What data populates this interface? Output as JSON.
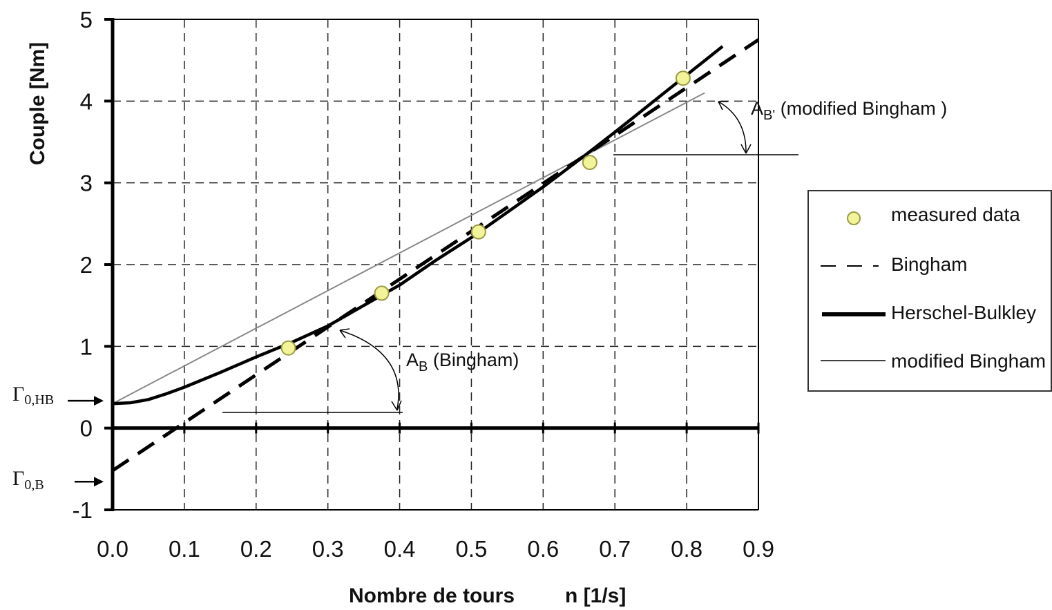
{
  "chart_data": {
    "type": "line",
    "title": "",
    "xlabel": "Nombre de tours",
    "xunit": "n [1/s]",
    "ylabel": "Couple",
    "yunit": "[Nm]",
    "xlim": [
      0.0,
      0.9
    ],
    "ylim": [
      -1,
      5
    ],
    "grid": true,
    "x_ticks": [
      "0.0",
      "0.1",
      "0.2",
      "0.3",
      "0.4",
      "0.5",
      "0.6",
      "0.7",
      "0.8",
      "0.9"
    ],
    "y_ticks": [
      "5",
      "4",
      "3",
      "2",
      "1",
      "0",
      "-1"
    ],
    "legend_position": "right",
    "series": [
      {
        "name": "measured data",
        "style": "marker",
        "color": "#f3f39a",
        "x": [
          0.245,
          0.375,
          0.51,
          0.665,
          0.795
        ],
        "y": [
          0.98,
          1.65,
          2.4,
          3.25,
          4.28
        ]
      },
      {
        "name": "Bingham",
        "style": "dashed",
        "color": "#000000",
        "x": [
          0.0,
          0.9
        ],
        "y": [
          -0.52,
          4.75
        ]
      },
      {
        "name": "Herschel-Bulkley",
        "style": "thick",
        "color": "#000000",
        "x": [
          0.0,
          0.025,
          0.05,
          0.075,
          0.1,
          0.15,
          0.2,
          0.25,
          0.3,
          0.35,
          0.4,
          0.45,
          0.5,
          0.55,
          0.6,
          0.65,
          0.7,
          0.75,
          0.8,
          0.85
        ],
        "y": [
          0.3,
          0.31,
          0.35,
          0.42,
          0.5,
          0.68,
          0.87,
          1.05,
          1.25,
          1.5,
          1.75,
          2.05,
          2.33,
          2.64,
          2.95,
          3.28,
          3.62,
          3.97,
          4.32,
          4.67
        ]
      },
      {
        "name": "modified Bingham",
        "style": "thin",
        "color": "#888888",
        "x": [
          0.0,
          0.825
        ],
        "y": [
          0.3,
          4.1
        ]
      }
    ],
    "annotations": {
      "gamma_hb": {
        "text": "Γ",
        "sub": "0,HB",
        "y": 0.3
      },
      "gamma_b": {
        "text": "Γ",
        "sub": "0,B",
        "y": -0.52
      },
      "a_b": {
        "main": "A",
        "sub": "B",
        "rest": " (Bingham)"
      },
      "a_b_mod": {
        "main": "A",
        "sub": "B'",
        "rest": " (modified Bingham )"
      }
    }
  }
}
